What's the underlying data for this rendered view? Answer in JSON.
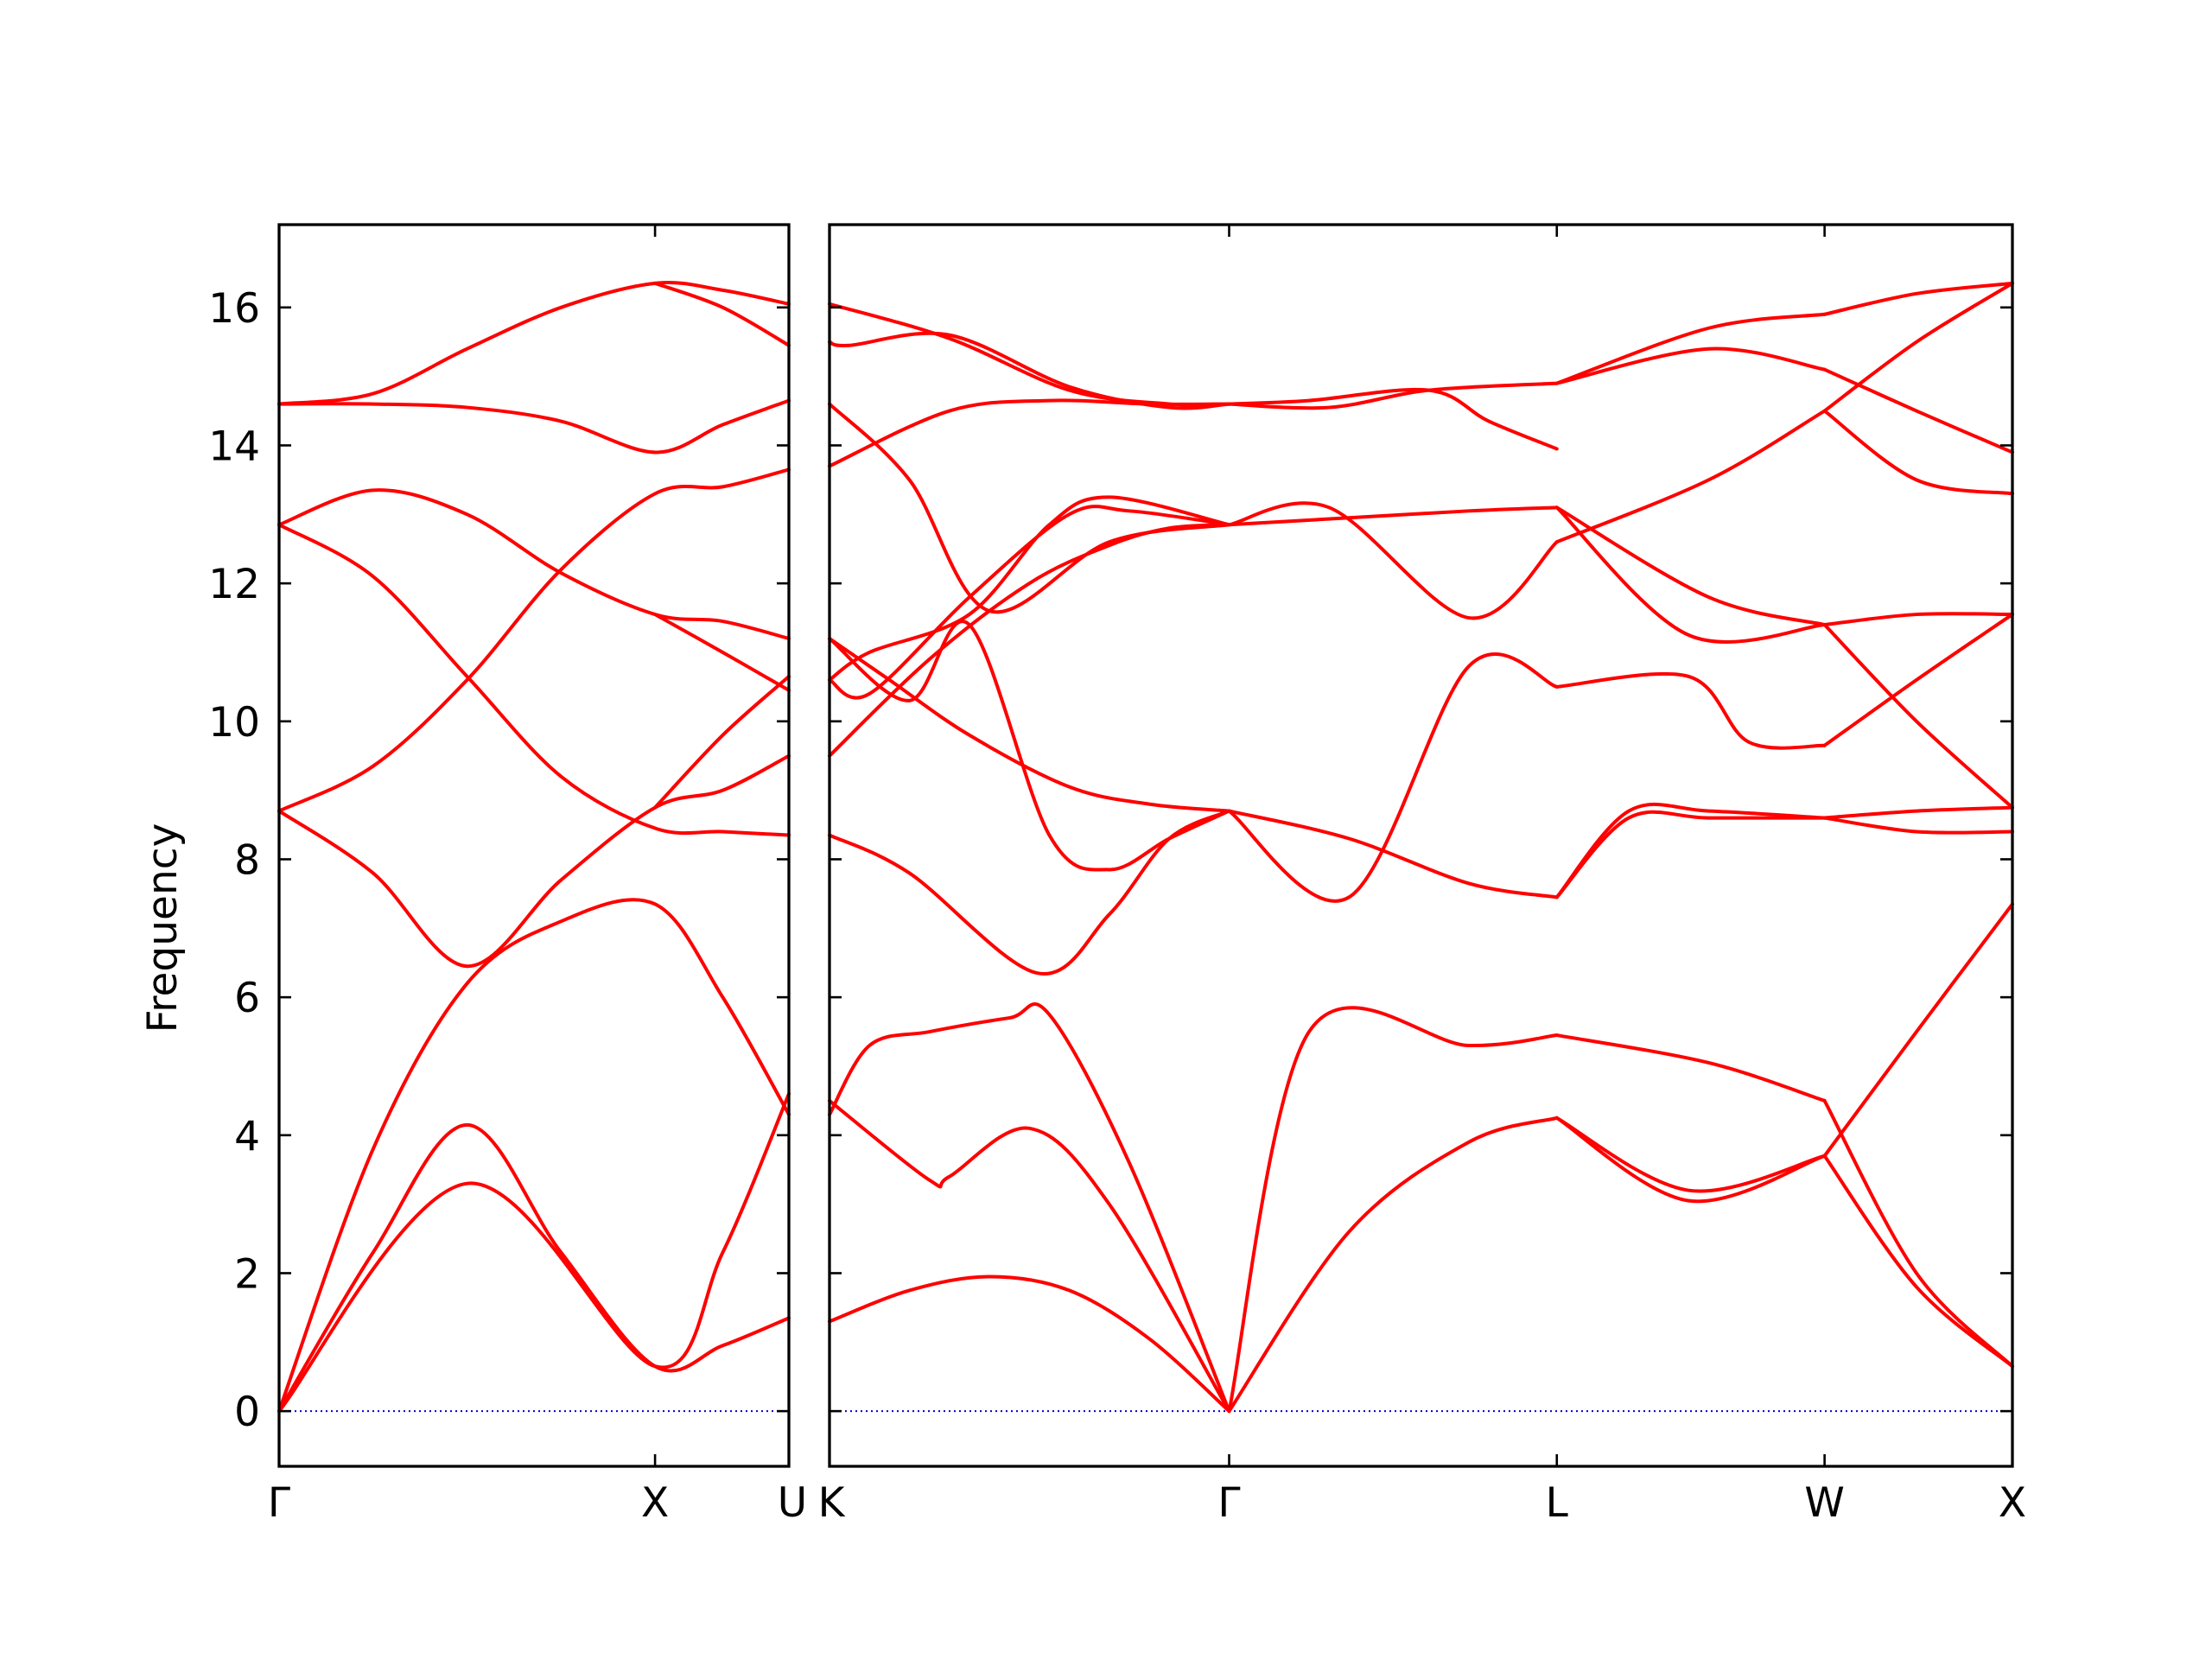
{
  "chart_data": {
    "type": "line",
    "ylabel": "Frequency",
    "ylim": [
      -0.8,
      17.2
    ],
    "yticks": [
      0,
      2,
      4,
      6,
      8,
      10,
      12,
      14,
      16
    ],
    "grid": false,
    "legend": "none",
    "colors": {
      "bands": "#ff0000",
      "zero_line": "#0000cc",
      "axes": "#000000"
    },
    "panels": [
      {
        "xticks": [
          {
            "pos": 0.0,
            "label": "Γ"
          },
          {
            "pos": 1.0,
            "label": "X"
          },
          {
            "pos": 1.356,
            "label": "U"
          }
        ],
        "xlim": [
          0.0,
          1.356
        ],
        "series": [
          {
            "x": [
              0,
              0.25,
              0.5,
              0.75,
              1.0,
              1.18,
              1.356
            ],
            "values": [
              0.0,
              2.3,
              4.15,
              2.3,
              0.65,
              0.95,
              1.35
            ]
          },
          {
            "x": [
              0,
              0.25,
              0.5,
              0.75,
              1.0,
              1.18,
              1.356
            ],
            "values": [
              0.0,
              3.8,
              6.2,
              7.1,
              7.35,
              6.0,
              4.3
            ]
          },
          {
            "x": [
              0,
              0.5,
              1.0,
              1.18,
              1.356
            ],
            "values": [
              0.0,
              3.3,
              0.65,
              2.3,
              4.6
            ]
          },
          {
            "x": [
              0,
              0.25,
              0.5,
              0.75,
              1.0,
              1.18,
              1.356
            ],
            "values": [
              8.7,
              7.8,
              6.45,
              7.7,
              8.75,
              9.0,
              9.5
            ]
          },
          {
            "x": [
              0,
              0.25,
              0.5,
              0.75,
              1.0,
              1.18,
              1.356
            ],
            "values": [
              8.7,
              9.35,
              10.6,
              12.2,
              13.3,
              13.4,
              13.65
            ]
          },
          {
            "x": [
              0,
              0.25,
              0.5,
              0.75,
              1.0,
              1.18,
              1.356
            ],
            "values": [
              12.85,
              12.1,
              10.65,
              9.2,
              8.45,
              8.4,
              8.35
            ]
          },
          {
            "x": [
              0,
              0.25,
              0.5,
              0.75,
              1.0,
              1.18,
              1.356
            ],
            "values": [
              12.85,
              13.35,
              13.0,
              12.15,
              11.55,
              11.45,
              11.2
            ]
          },
          {
            "x": [
              0,
              0.25,
              0.5,
              0.75,
              1.0,
              1.18,
              1.356
            ],
            "values": [
              14.6,
              14.6,
              14.55,
              14.35,
              13.9,
              14.3,
              14.65
            ]
          },
          {
            "x": [
              0,
              0.25,
              0.5,
              0.75,
              1.0,
              1.18,
              1.356
            ],
            "values": [
              14.6,
              14.75,
              15.4,
              16.0,
              16.35,
              16.25,
              16.05
            ]
          },
          {
            "x": [
              1.0,
              1.18,
              1.356
            ],
            "values": [
              16.35,
              16.0,
              15.45
            ]
          },
          {
            "x": [
              1.0,
              1.18,
              1.356
            ],
            "values": [
              8.75,
              9.8,
              10.65
            ]
          },
          {
            "x": [
              1.0,
              1.18,
              1.356
            ],
            "values": [
              11.55,
              11.0,
              10.45
            ]
          }
        ]
      },
      {
        "xticks": [
          {
            "pos": 0.0,
            "label": "K"
          },
          {
            "pos": 1.0,
            "label": "Γ"
          },
          {
            "pos": 1.82,
            "label": "L"
          },
          {
            "pos": 2.49,
            "label": "W"
          },
          {
            "pos": 2.96,
            "label": "X"
          }
        ],
        "xlim": [
          0.0,
          2.96
        ],
        "series": [
          {
            "x": [
              0,
              0.2,
              0.4,
              0.6,
              0.8,
              1.0
            ],
            "values": [
              1.3,
              1.75,
              1.95,
              1.75,
              1.05,
              0.0
            ]
          },
          {
            "x": [
              0,
              0.25,
              0.3,
              0.5,
              0.7,
              1.0
            ],
            "values": [
              4.5,
              3.35,
              3.4,
              4.1,
              3.0,
              0.0
            ]
          },
          {
            "x": [
              0,
              0.1,
              0.25,
              0.45,
              0.55,
              0.75,
              1.0
            ],
            "values": [
              4.3,
              5.3,
              5.5,
              5.7,
              5.75,
              3.6,
              0.0
            ]
          },
          {
            "x": [
              0,
              0.2,
              0.52,
              0.7,
              0.85,
              1.0
            ],
            "values": [
              8.35,
              7.8,
              6.35,
              7.2,
              8.3,
              8.7
            ]
          },
          {
            "x": [
              0,
              0.2,
              0.35,
              0.55,
              0.7,
              0.85,
              1.0
            ],
            "values": [
              11.2,
              10.3,
              11.4,
              8.35,
              7.85,
              8.3,
              8.7
            ]
          },
          {
            "x": [
              0,
              0.15,
              0.35,
              0.6,
              0.8,
              1.0
            ],
            "values": [
              11.2,
              10.6,
              9.8,
              9.05,
              8.8,
              8.7
            ]
          },
          {
            "x": [
              0,
              0.25,
              0.5,
              0.7,
              0.85,
              1.0
            ],
            "values": [
              9.5,
              10.9,
              12.0,
              12.55,
              12.8,
              12.85
            ]
          },
          {
            "x": [
              0,
              0.1,
              0.35,
              0.6,
              0.75,
              1.0
            ],
            "values": [
              10.6,
              10.4,
              11.8,
              13.0,
              13.05,
              12.85
            ]
          },
          {
            "x": [
              0,
              0.1,
              0.35,
              0.55,
              0.7,
              1.0
            ],
            "values": [
              10.6,
              11.0,
              11.55,
              12.85,
              13.25,
              12.85
            ]
          },
          {
            "x": [
              0,
              0.2,
              0.4,
              0.7,
              1.0
            ],
            "values": [
              14.6,
              13.5,
              11.6,
              12.6,
              12.85
            ]
          },
          {
            "x": [
              0,
              0.3,
              0.55,
              0.8,
              1.0
            ],
            "values": [
              13.7,
              14.5,
              14.65,
              14.6,
              14.6
            ]
          },
          {
            "x": [
              0,
              0.05,
              0.3,
              0.6,
              0.85,
              1.0
            ],
            "values": [
              15.5,
              15.45,
              15.6,
              14.85,
              14.55,
              14.6
            ]
          },
          {
            "x": [
              0,
              0.3,
              0.6,
              0.85,
              1.0
            ],
            "values": [
              16.05,
              15.55,
              14.8,
              14.6,
              14.6
            ]
          },
          {
            "x": [
              1.0,
              1.3,
              1.6,
              1.82
            ],
            "values": [
              8.7,
              7.45,
              10.8,
              10.5
            ]
          },
          {
            "x": [
              1.0,
              1.3,
              1.6,
              1.82
            ],
            "values": [
              8.7,
              8.3,
              7.65,
              7.45
            ]
          },
          {
            "x": [
              1.0,
              1.2,
              1.6,
              1.82
            ],
            "values": [
              0.0,
              5.5,
              5.3,
              5.45
            ]
          },
          {
            "x": [
              1.0,
              1.3,
              1.6,
              1.82
            ],
            "values": [
              0.0,
              2.6,
              3.9,
              4.25
            ]
          },
          {
            "x": [
              1.0,
              1.25,
              1.6,
              1.82
            ],
            "values": [
              12.85,
              13.1,
              11.5,
              12.6
            ]
          },
          {
            "x": [
              1.0,
              1.3,
              1.6,
              1.82
            ],
            "values": [
              12.85,
              12.95,
              13.05,
              13.1
            ]
          },
          {
            "x": [
              1.0,
              1.25,
              1.5,
              1.82
            ],
            "values": [
              14.6,
              14.55,
              14.8,
              14.9
            ]
          },
          {
            "x": [
              1.0,
              1.2,
              1.5,
              1.65,
              1.82
            ],
            "values": [
              14.6,
              14.65,
              14.8,
              14.35,
              13.95
            ]
          },
          {
            "x": [
              1.82,
              2.15,
              2.49
            ],
            "values": [
              4.25,
              3.05,
              3.7
            ]
          },
          {
            "x": [
              1.82,
              2.15,
              2.49
            ],
            "values": [
              4.25,
              3.2,
              3.7
            ]
          },
          {
            "x": [
              1.82,
              2.2,
              2.49
            ],
            "values": [
              5.45,
              5.05,
              4.5
            ]
          },
          {
            "x": [
              1.82,
              2.0,
              2.2,
              2.49
            ],
            "values": [
              7.45,
              8.6,
              8.6,
              8.6
            ]
          },
          {
            "x": [
              1.82,
              2.0,
              2.2,
              2.49
            ],
            "values": [
              7.45,
              8.7,
              8.7,
              8.6
            ]
          },
          {
            "x": [
              1.82,
              2.15,
              2.3,
              2.49
            ],
            "values": [
              10.5,
              10.65,
              9.7,
              9.65
            ]
          },
          {
            "x": [
              1.82,
              2.15,
              2.49
            ],
            "values": [
              13.1,
              11.25,
              11.4
            ]
          },
          {
            "x": [
              1.82,
              2.2,
              2.49
            ],
            "values": [
              13.1,
              11.8,
              11.4
            ]
          },
          {
            "x": [
              1.82,
              2.2,
              2.49
            ],
            "values": [
              12.6,
              13.5,
              14.5
            ]
          },
          {
            "x": [
              1.82,
              2.2,
              2.49
            ],
            "values": [
              14.9,
              15.4,
              15.1
            ]
          },
          {
            "x": [
              1.82,
              2.2,
              2.49
            ],
            "values": [
              14.9,
              15.7,
              15.9
            ]
          },
          {
            "x": [
              2.49,
              2.72,
              2.96
            ],
            "values": [
              3.7,
              1.8,
              0.65
            ]
          },
          {
            "x": [
              2.49,
              2.72,
              2.96
            ],
            "values": [
              4.5,
              2.0,
              0.65
            ]
          },
          {
            "x": [
              2.49,
              2.72,
              2.96
            ],
            "values": [
              3.7,
              5.5,
              7.35
            ]
          },
          {
            "x": [
              2.49,
              2.72,
              2.96
            ],
            "values": [
              8.6,
              8.4,
              8.4
            ]
          },
          {
            "x": [
              2.49,
              2.72,
              2.96
            ],
            "values": [
              8.6,
              8.7,
              8.75
            ]
          },
          {
            "x": [
              2.49,
              2.72,
              2.96
            ],
            "values": [
              9.65,
              10.6,
              11.55
            ]
          },
          {
            "x": [
              2.49,
              2.72,
              2.96
            ],
            "values": [
              11.4,
              10.0,
              8.75
            ]
          },
          {
            "x": [
              2.49,
              2.72,
              2.96
            ],
            "values": [
              11.4,
              11.55,
              11.55
            ]
          },
          {
            "x": [
              2.49,
              2.72,
              2.96
            ],
            "values": [
              14.5,
              13.5,
              13.3
            ]
          },
          {
            "x": [
              2.49,
              2.72,
              2.96
            ],
            "values": [
              15.1,
              14.5,
              13.9
            ]
          },
          {
            "x": [
              2.49,
              2.72,
              2.96
            ],
            "values": [
              14.5,
              15.5,
              16.35
            ]
          },
          {
            "x": [
              2.49,
              2.72,
              2.96
            ],
            "values": [
              15.9,
              16.2,
              16.35
            ]
          }
        ]
      }
    ]
  }
}
